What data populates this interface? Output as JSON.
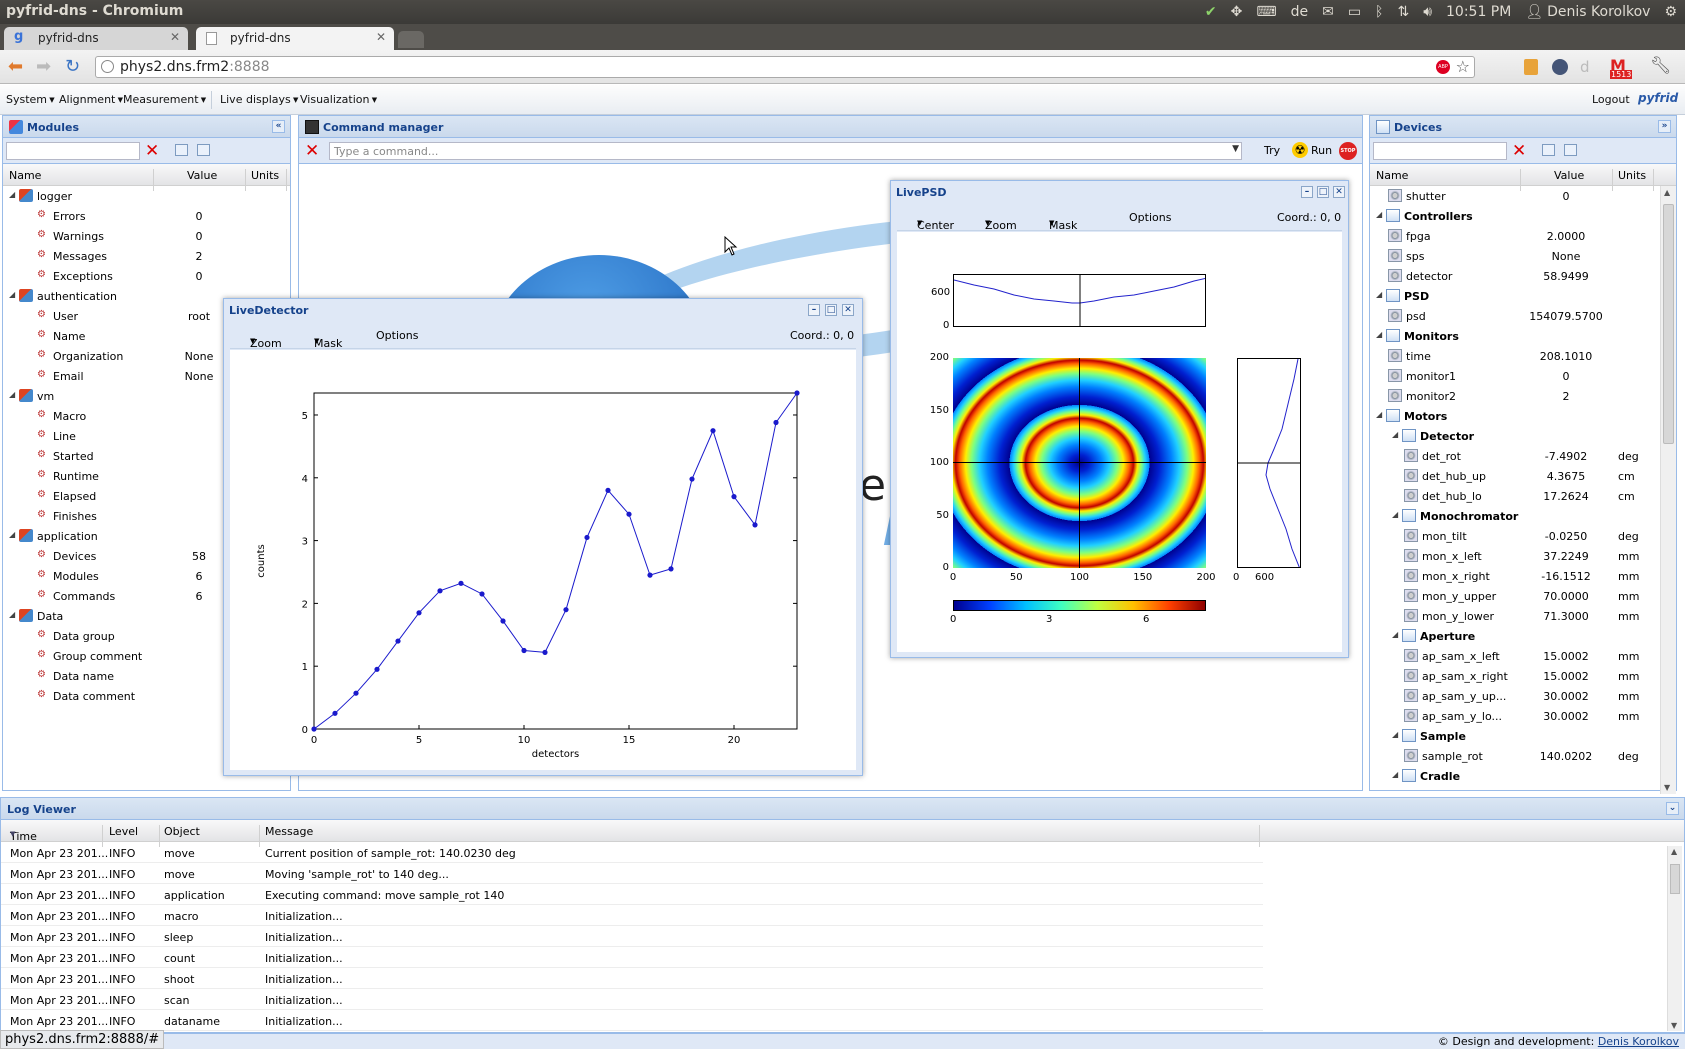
{
  "window": {
    "title": "pyfrid-dns - Chromium"
  },
  "tray": {
    "lang": "de",
    "time": "10:51 PM",
    "user": "Denis Korolkov"
  },
  "tabs": [
    {
      "label": "pyfrid-dns"
    },
    {
      "label": "pyfrid-dns"
    }
  ],
  "url": {
    "host": "phys2.dns.frm2",
    "port": ":8888"
  },
  "mail_badge": "1513",
  "menu": {
    "items": [
      "System",
      "Alignment",
      "Measurement",
      "Live displays",
      "Visualization"
    ],
    "logout": "Logout",
    "logo": "pyfrid"
  },
  "modules": {
    "title": "Modules",
    "columns": [
      "Name",
      "Value",
      "Units"
    ],
    "rows": [
      {
        "name": "logger",
        "value": "",
        "group": true
      },
      {
        "name": "Errors",
        "value": "0"
      },
      {
        "name": "Warnings",
        "value": "0"
      },
      {
        "name": "Messages",
        "value": "2"
      },
      {
        "name": "Exceptions",
        "value": "0"
      },
      {
        "name": "authentication",
        "value": "",
        "group": true
      },
      {
        "name": "User",
        "value": "root"
      },
      {
        "name": "Name",
        "value": ""
      },
      {
        "name": "Organization",
        "value": "None"
      },
      {
        "name": "Email",
        "value": "None"
      },
      {
        "name": "vm",
        "value": "",
        "group": true
      },
      {
        "name": "Macro",
        "value": ""
      },
      {
        "name": "Line",
        "value": ""
      },
      {
        "name": "Started",
        "value": ""
      },
      {
        "name": "Runtime",
        "value": ""
      },
      {
        "name": "Elapsed",
        "value": ""
      },
      {
        "name": "Finishes",
        "value": ""
      },
      {
        "name": "application",
        "value": "",
        "group": true
      },
      {
        "name": "Devices",
        "value": "58"
      },
      {
        "name": "Modules",
        "value": "6"
      },
      {
        "name": "Commands",
        "value": "6"
      },
      {
        "name": "Data",
        "value": "",
        "group": true
      },
      {
        "name": "Data group",
        "value": ""
      },
      {
        "name": "Group comment",
        "value": ""
      },
      {
        "name": "Data name",
        "value": ""
      },
      {
        "name": "Data comment",
        "value": ""
      }
    ]
  },
  "command": {
    "title": "Command manager",
    "placeholder": "Type a command...",
    "try": "Try",
    "run": "Run",
    "stop": "STOP"
  },
  "livedetector": {
    "title": "LiveDetector",
    "zoom": "Zoom",
    "mask": "Mask",
    "options": "Options",
    "coord": "Coord.: 0, 0"
  },
  "livepsd": {
    "title": "LivePSD",
    "center": "Center",
    "zoom": "Zoom",
    "mask": "Mask",
    "options": "Options",
    "coord": "Coord.: 0, 0",
    "top_ticks": [
      "600",
      "0"
    ],
    "y_ticks": [
      "200",
      "150",
      "100",
      "50",
      "0"
    ],
    "x_ticks": [
      "0",
      "50",
      "100",
      "150",
      "200"
    ],
    "side_ticks": [
      "0",
      "600"
    ],
    "cbar_ticks": [
      "0",
      "3",
      "6"
    ]
  },
  "devices": {
    "title": "Devices",
    "columns": [
      "Name",
      "Value",
      "Units"
    ],
    "rows": [
      {
        "name": "shutter",
        "value": "0",
        "unit": "",
        "lvl": 1
      },
      {
        "name": "Controllers",
        "value": "",
        "unit": "",
        "lvl": 0,
        "group": true
      },
      {
        "name": "fpga",
        "value": "2.0000",
        "unit": "",
        "lvl": 1
      },
      {
        "name": "sps",
        "value": "None",
        "unit": "",
        "lvl": 1
      },
      {
        "name": "detector",
        "value": "58.9499",
        "unit": "",
        "lvl": 1
      },
      {
        "name": "PSD",
        "value": "",
        "unit": "",
        "lvl": 0,
        "group": true
      },
      {
        "name": "psd",
        "value": "154079.5700",
        "unit": "",
        "lvl": 1
      },
      {
        "name": "Monitors",
        "value": "",
        "unit": "",
        "lvl": 0,
        "group": true
      },
      {
        "name": "time",
        "value": "208.1010",
        "unit": "",
        "lvl": 1
      },
      {
        "name": "monitor1",
        "value": "0",
        "unit": "",
        "lvl": 1
      },
      {
        "name": "monitor2",
        "value": "2",
        "unit": "",
        "lvl": 1
      },
      {
        "name": "Motors",
        "value": "",
        "unit": "",
        "lvl": 0,
        "group": true
      },
      {
        "name": "Detector",
        "value": "",
        "unit": "",
        "lvl": 1,
        "group": true
      },
      {
        "name": "det_rot",
        "value": "-7.4902",
        "unit": "deg",
        "lvl": 2
      },
      {
        "name": "det_hub_up",
        "value": "4.3675",
        "unit": "cm",
        "lvl": 2
      },
      {
        "name": "det_hub_lo",
        "value": "17.2624",
        "unit": "cm",
        "lvl": 2
      },
      {
        "name": "Monochromator",
        "value": "",
        "unit": "",
        "lvl": 1,
        "group": true
      },
      {
        "name": "mon_tilt",
        "value": "-0.0250",
        "unit": "deg",
        "lvl": 2
      },
      {
        "name": "mon_x_left",
        "value": "37.2249",
        "unit": "mm",
        "lvl": 2
      },
      {
        "name": "mon_x_right",
        "value": "-16.1512",
        "unit": "mm",
        "lvl": 2
      },
      {
        "name": "mon_y_upper",
        "value": "70.0000",
        "unit": "mm",
        "lvl": 2
      },
      {
        "name": "mon_y_lower",
        "value": "71.3000",
        "unit": "mm",
        "lvl": 2
      },
      {
        "name": "Aperture",
        "value": "",
        "unit": "",
        "lvl": 1,
        "group": true
      },
      {
        "name": "ap_sam_x_left",
        "value": "15.0002",
        "unit": "mm",
        "lvl": 2
      },
      {
        "name": "ap_sam_x_right",
        "value": "15.0002",
        "unit": "mm",
        "lvl": 2
      },
      {
        "name": "ap_sam_y_up...",
        "value": "30.0002",
        "unit": "mm",
        "lvl": 2
      },
      {
        "name": "ap_sam_y_lo...",
        "value": "30.0002",
        "unit": "mm",
        "lvl": 2
      },
      {
        "name": "Sample",
        "value": "",
        "unit": "",
        "lvl": 1,
        "group": true
      },
      {
        "name": "sample_rot",
        "value": "140.0202",
        "unit": "deg",
        "lvl": 2
      },
      {
        "name": "Cradle",
        "value": "",
        "unit": "",
        "lvl": 1,
        "group": true
      }
    ]
  },
  "log": {
    "title": "Log Viewer",
    "columns": [
      "Time",
      "Level",
      "Object",
      "Message"
    ],
    "rows": [
      {
        "time": "Mon Apr 23 201...",
        "level": "INFO",
        "object": "move",
        "message": "Current position of sample_rot: 140.0230 deg"
      },
      {
        "time": "Mon Apr 23 201...",
        "level": "INFO",
        "object": "move",
        "message": "Moving 'sample_rot' to 140 deg..."
      },
      {
        "time": "Mon Apr 23 201...",
        "level": "INFO",
        "object": "application",
        "message": "Executing command: move sample_rot 140"
      },
      {
        "time": "Mon Apr 23 201...",
        "level": "INFO",
        "object": "macro",
        "message": "Initialization..."
      },
      {
        "time": "Mon Apr 23 201...",
        "level": "INFO",
        "object": "sleep",
        "message": "Initialization..."
      },
      {
        "time": "Mon Apr 23 201...",
        "level": "INFO",
        "object": "count",
        "message": "Initialization..."
      },
      {
        "time": "Mon Apr 23 201...",
        "level": "INFO",
        "object": "shoot",
        "message": "Initialization..."
      },
      {
        "time": "Mon Apr 23 201...",
        "level": "INFO",
        "object": "scan",
        "message": "Initialization..."
      },
      {
        "time": "Mon Apr 23 201...",
        "level": "INFO",
        "object": "dataname",
        "message": "Initialization..."
      }
    ]
  },
  "status": {
    "url": "phys2.dns.frm2:8888/#",
    "credit": "© Design and development:",
    "author": "Denis Korolkov"
  },
  "chart_data": {
    "type": "line",
    "xlabel": "detectors",
    "ylabel": "counts",
    "xlim": [
      0,
      23
    ],
    "ylim": [
      0,
      5.35
    ],
    "xticks": [
      0,
      5,
      10,
      15,
      20
    ],
    "yticks": [
      0,
      1,
      2,
      3,
      4,
      5
    ],
    "x": [
      0,
      1,
      2,
      3,
      4,
      5,
      6,
      7,
      8,
      9,
      10,
      11,
      12,
      13,
      14,
      15,
      16,
      17,
      18,
      19,
      20,
      21,
      22,
      23
    ],
    "series": [
      {
        "values": [
          0,
          0.25,
          0.57,
          0.95,
          1.4,
          1.85,
          2.2,
          2.32,
          2.15,
          1.72,
          1.25,
          1.22,
          1.9,
          3.05,
          3.8,
          3.42,
          2.45,
          2.55,
          3.98,
          4.75,
          3.7,
          3.25,
          4.88,
          5.35
        ]
      }
    ]
  }
}
